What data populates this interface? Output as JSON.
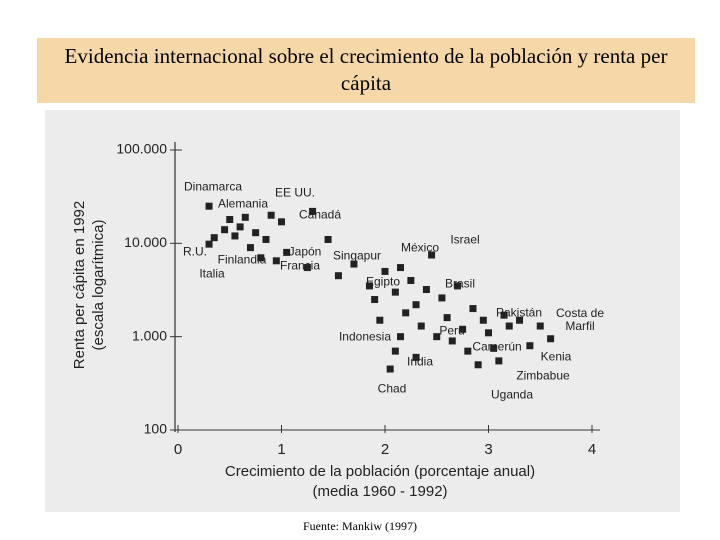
{
  "title": "Evidencia internacional sobre el crecimiento de la población y renta per cápita",
  "source": "Fuente: Mankiw (1997)",
  "chart_data": {
    "type": "scatter",
    "xlabel": [
      "Crecimiento de la población (porcentaje anual)",
      "(media 1960 - 1992)"
    ],
    "ylabel": [
      "Renta per cápita en 1992",
      "(escala logarítmica)"
    ],
    "x": [
      0.3,
      0.35,
      0.3,
      0.45,
      0.5,
      0.55,
      0.6,
      0.65,
      0.7,
      0.75,
      0.8,
      0.85,
      0.9,
      0.95,
      1.0,
      1.05,
      1.3,
      1.25,
      1.45,
      1.55,
      1.7,
      1.85,
      1.9,
      2.0,
      2.1,
      2.15,
      2.2,
      2.25,
      2.3,
      2.35,
      2.4,
      2.45,
      2.5,
      2.55,
      2.6,
      2.65,
      2.7,
      2.75,
      2.8,
      2.85,
      2.9,
      2.95,
      3.0,
      3.05,
      3.1,
      3.2,
      3.3,
      3.4,
      3.5,
      2.05,
      2.1,
      1.95,
      2.3,
      3.6,
      3.15,
      2.15
    ],
    "values": [
      25000,
      11500,
      9800,
      14000,
      18000,
      12000,
      15000,
      19000,
      9000,
      13000,
      7000,
      11000,
      20000,
      6500,
      17000,
      8000,
      22000,
      5500,
      11000,
      4500,
      6000,
      3500,
      2500,
      5000,
      3000,
      5500,
      1800,
      4000,
      2200,
      1300,
      3200,
      7500,
      1000,
      2600,
      1600,
      900,
      3500,
      1200,
      700,
      2000,
      500,
      1500,
      1100,
      750,
      550,
      1300,
      1500,
      800,
      1300,
      450,
      700,
      1500,
      600,
      950,
      1700,
      1000
    ],
    "color": "#222222",
    "log_y": true,
    "xlim": [
      0,
      4
    ],
    "xticks": [
      0,
      1,
      2,
      3,
      4
    ],
    "ylim": [
      100,
      100000
    ],
    "yticks": [
      100,
      {
        "value": 1000,
        "label": "1.000"
      },
      {
        "value": 10000,
        "label": "10.000"
      },
      {
        "value": 100000,
        "label": "100.000"
      }
    ],
    "annotations": [
      "Dinamarca",
      "Alemania",
      "EE UU.",
      "Canadá",
      "R.U.",
      "Finlandia",
      "Italia",
      "Japón",
      "Francia",
      "Singapur",
      "México",
      "Israel",
      "Egipto",
      "Brasil",
      "Pakistán",
      "Costa de Marfil",
      "Indonesia",
      "Perú",
      "Camerún",
      "India",
      "Kenia",
      "Zimbabue",
      "Chad",
      "Uganda"
    ]
  }
}
